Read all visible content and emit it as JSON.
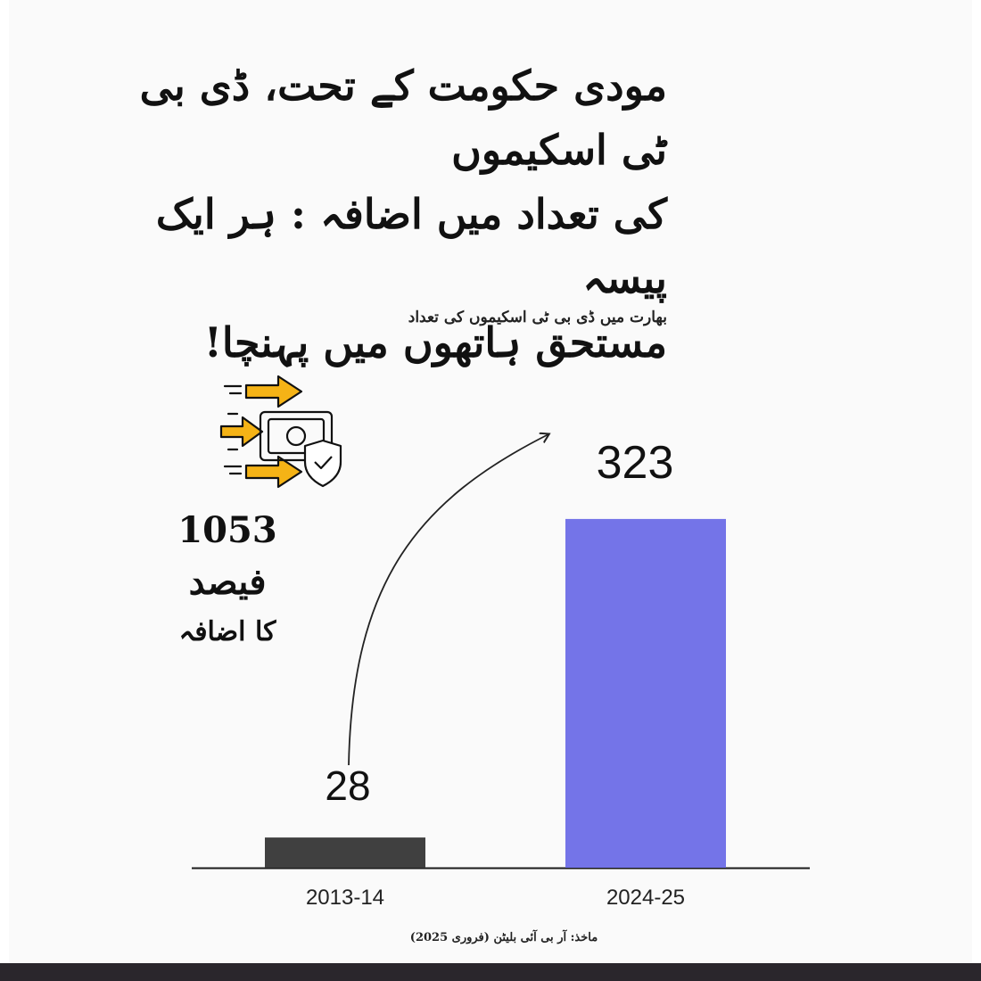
{
  "headline": {
    "lines": [
      "مودی حکومت کے تحت، ڈی بی ٹی اسکیموں",
      "کی تعداد میں اضافہ : ہر ایک پیسہ",
      "مستحق ہاتھوں میں پہنچا!"
    ]
  },
  "subtitle": "بھارت میں ڈی بی ٹی اسکیموں کی تعداد",
  "highlight": {
    "percent": "1053 فیصد",
    "label": "کا اضافہ",
    "icon": "money-transfer-icon"
  },
  "source": "ماخذ: آر بی آئی بلیٹن (فروری 2025)",
  "colors": {
    "background": "#fafafa",
    "bar_2013": "#404040",
    "bar_2024": "#7474e8",
    "accent_arrow": "#f5b316",
    "bottom_bar": "#2a262c"
  },
  "chart_data": {
    "type": "bar",
    "categories": [
      "2013-14",
      "2024-25"
    ],
    "values": [
      28,
      323
    ],
    "data_labels": [
      "28",
      "323"
    ],
    "title": "بھارت میں ڈی بی ٹی اسکیموں کی تعداد",
    "xlabel": "",
    "ylabel": "",
    "ylim": [
      0,
      370
    ],
    "grid": false,
    "legend": "none",
    "annotation": "curved arrow from 2013-14 to 2024-25"
  }
}
